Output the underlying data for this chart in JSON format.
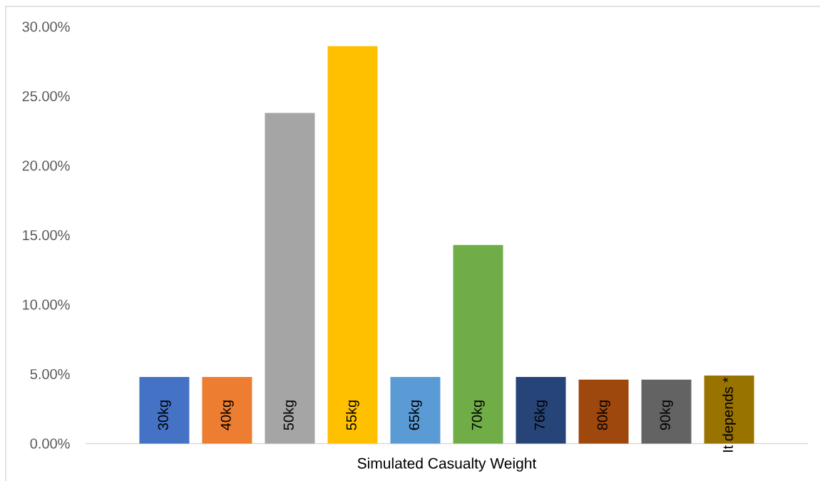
{
  "chart_data": {
    "type": "bar",
    "xlabel": "Simulated Casualty Weight",
    "categories": [
      "30kg",
      "40kg",
      "50kg",
      "55kg",
      "65kg",
      "70kg",
      "76kg",
      "80kg",
      "90kg",
      "It depends *"
    ],
    "values": [
      4.8,
      4.8,
      23.8,
      28.6,
      4.8,
      14.3,
      4.8,
      4.6,
      4.6,
      4.9
    ],
    "colors": [
      "#4472c4",
      "#ed7d31",
      "#a5a5a5",
      "#ffc000",
      "#5b9bd5",
      "#70ad47",
      "#264478",
      "#9e480e",
      "#636363",
      "#997300"
    ],
    "ylim": [
      0,
      30
    ],
    "yticks": [
      {
        "value": 0,
        "label": "0.00%"
      },
      {
        "value": 5,
        "label": "5.00%"
      },
      {
        "value": 10,
        "label": "10.00%"
      },
      {
        "value": 15,
        "label": "15.00%"
      },
      {
        "value": 20,
        "label": "20.00%"
      },
      {
        "value": 25,
        "label": "25.00%"
      },
      {
        "value": 30,
        "label": "30.00%"
      }
    ]
  }
}
